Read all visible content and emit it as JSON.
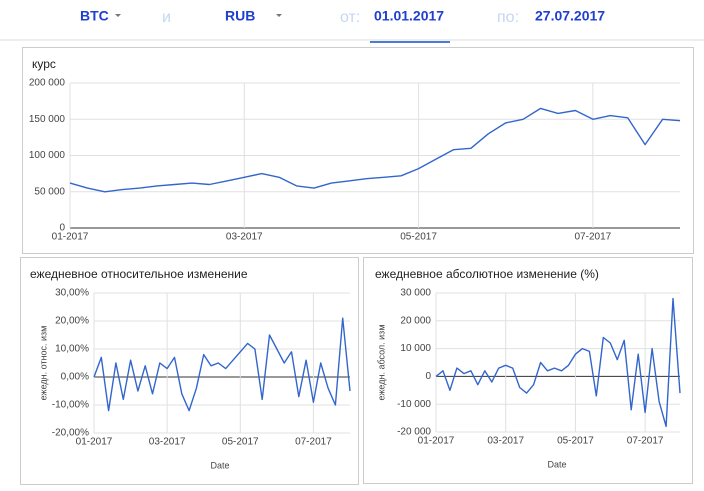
{
  "header": {
    "from_currency": "BTC",
    "and": "и",
    "to_currency": "RUB",
    "from_label": "от:",
    "from_date": "01.01.2017",
    "to_label": "по:",
    "to_date": "27.07.2017"
  },
  "chart_data": [
    {
      "type": "line",
      "title": "курс",
      "color": "#3366cc",
      "grid": true,
      "categories": [
        "01-2017",
        null,
        null,
        null,
        null,
        null,
        null,
        null,
        null,
        null,
        "03-2017",
        null,
        null,
        null,
        null,
        null,
        null,
        null,
        null,
        null,
        "05-2017",
        null,
        null,
        null,
        null,
        null,
        null,
        null,
        null,
        null,
        "07-2017",
        null,
        null,
        null,
        null,
        null
      ],
      "values": [
        62000,
        55000,
        50000,
        53000,
        55000,
        58000,
        60000,
        62000,
        60000,
        65000,
        70000,
        75000,
        70000,
        58000,
        55000,
        62000,
        65000,
        68000,
        70000,
        72000,
        82000,
        95000,
        108000,
        110000,
        130000,
        145000,
        150000,
        165000,
        158000,
        162000,
        150000,
        155000,
        152000,
        115000,
        150000,
        148000
      ],
      "ylim": [
        0,
        200000
      ],
      "yticks": [
        0,
        {
          "value": 50000,
          "label": "50 000"
        },
        {
          "value": 100000,
          "label": "100 000"
        },
        {
          "value": 150000,
          "label": "150 000"
        },
        {
          "value": 200000,
          "label": "200 000"
        }
      ]
    },
    {
      "type": "line",
      "title": "ежедневное относительное изменение",
      "y_label": "ежедн. относ. изм",
      "x_label": "Date",
      "color": "#3366cc",
      "grid": true,
      "categories": [
        "01-2017",
        null,
        null,
        null,
        null,
        null,
        null,
        null,
        null,
        null,
        "03-2017",
        null,
        null,
        null,
        null,
        null,
        null,
        null,
        null,
        null,
        "05-2017",
        null,
        null,
        null,
        null,
        null,
        null,
        null,
        null,
        null,
        "07-2017",
        null,
        null,
        null,
        null,
        null
      ],
      "values": [
        0,
        7,
        -12,
        5,
        -8,
        6,
        -5,
        4,
        -6,
        5,
        3,
        7,
        -6,
        -12,
        -4,
        8,
        4,
        5,
        3,
        6,
        9,
        12,
        10,
        -8,
        15,
        10,
        5,
        9,
        -7,
        6,
        -9,
        5,
        -4,
        -10,
        21,
        -5
      ],
      "ylim": [
        -20,
        30
      ],
      "yticks": [
        {
          "value": -20,
          "label": "-20,00%"
        },
        {
          "value": -10,
          "label": "-10,00%"
        },
        {
          "value": 0,
          "label": "0,00%"
        },
        {
          "value": 10,
          "label": "10,00%"
        },
        {
          "value": 20,
          "label": "20,00%"
        },
        {
          "value": 30,
          "label": "30,00%"
        }
      ]
    },
    {
      "type": "line",
      "title": "ежедневное абсолютное изменение (%)",
      "y_label": "ежедн. абсол. изм",
      "x_label": "Date",
      "color": "#3366cc",
      "grid": true,
      "categories": [
        "01-2017",
        null,
        null,
        null,
        null,
        null,
        null,
        null,
        null,
        null,
        "03-2017",
        null,
        null,
        null,
        null,
        null,
        null,
        null,
        null,
        null,
        "05-2017",
        null,
        null,
        null,
        null,
        null,
        null,
        null,
        null,
        null,
        "07-2017",
        null,
        null,
        null,
        null,
        null
      ],
      "values": [
        0,
        2000,
        -5000,
        3000,
        1000,
        2000,
        -3000,
        2000,
        -2000,
        3000,
        4000,
        3000,
        -4000,
        -6000,
        -3000,
        5000,
        2000,
        3000,
        2000,
        4000,
        8000,
        10000,
        9000,
        -7000,
        14000,
        12000,
        6000,
        13000,
        -12000,
        8000,
        -13000,
        10000,
        -9000,
        -18000,
        28000,
        -6000
      ],
      "ylim": [
        -20000,
        30000
      ],
      "yticks": [
        {
          "value": -20000,
          "label": "-20 000"
        },
        {
          "value": -10000,
          "label": "-10 000"
        },
        0,
        {
          "value": 10000,
          "label": "10 000"
        },
        {
          "value": 20000,
          "label": "20 000"
        },
        {
          "value": 30000,
          "label": "30 000"
        }
      ]
    }
  ]
}
